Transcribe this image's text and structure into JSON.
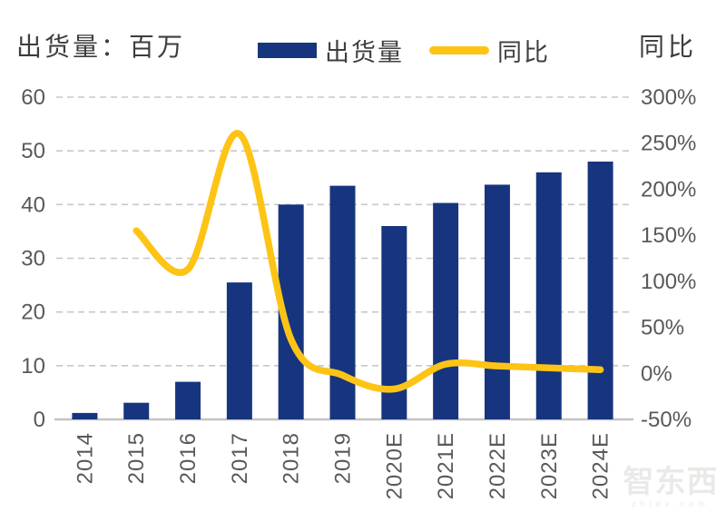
{
  "header": {
    "left_axis_title": "出货量：百万",
    "right_axis_title": "同比",
    "legend_bar_label": "出货量",
    "legend_line_label": "同比"
  },
  "watermark": {
    "brand": "智东西",
    "domain": "zhidx.com"
  },
  "colors": {
    "bar": "#17357E",
    "line": "#FDC416",
    "tick_text": "#595959",
    "gridline": "#C8C8C8",
    "axis_line": "#C4C4C4"
  },
  "chart_data": {
    "type": "bar",
    "subtype": "combo bar+line, dual axis",
    "title": "",
    "categories": [
      "2014",
      "2015",
      "2016",
      "2017",
      "2018",
      "2019",
      "2020E",
      "2021E",
      "2022E",
      "2023E",
      "2024E"
    ],
    "series": [
      {
        "name": "出货量",
        "type": "bar",
        "axis": "left",
        "unit": "百万",
        "color": "#17357E",
        "values": [
          1.2,
          3.1,
          7,
          25.5,
          40,
          43.5,
          36,
          40.3,
          43.7,
          46,
          48
        ]
      },
      {
        "name": "同比",
        "type": "line",
        "axis": "right",
        "unit": "%",
        "color": "#FDC416",
        "values": [
          null,
          155,
          113,
          260,
          37,
          -2,
          -17,
          10,
          8,
          6,
          4
        ]
      }
    ],
    "left_axis": {
      "title": "出货量：百万",
      "range": [
        0,
        60
      ],
      "tick_labels": [
        "0",
        "10",
        "20",
        "30",
        "40",
        "50",
        "60"
      ]
    },
    "right_axis": {
      "title": "同比",
      "range": [
        -50,
        300
      ],
      "tick_labels": [
        "-50%",
        "0%",
        "50%",
        "100%",
        "150%",
        "200%",
        "250%",
        "300%"
      ]
    },
    "grid": "horizontal dashed, left-axis intervals",
    "legend_position": "top center"
  }
}
